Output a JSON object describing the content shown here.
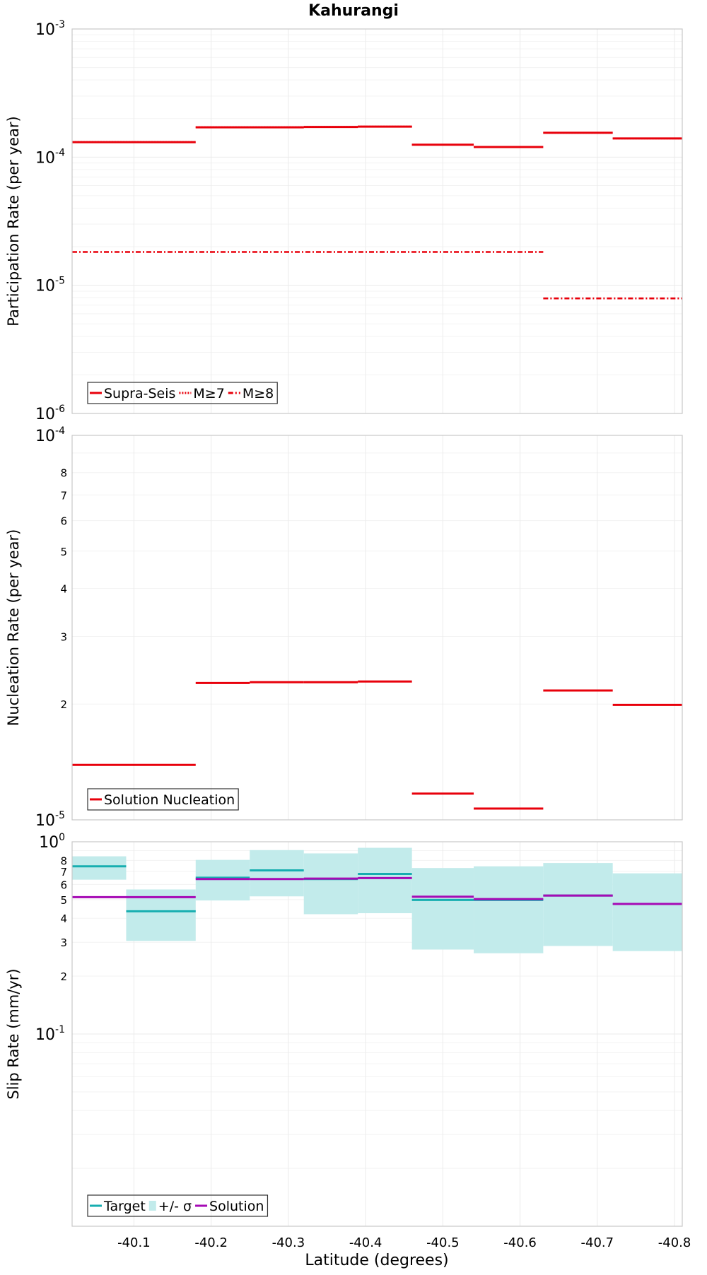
{
  "title": "Kahurangi",
  "xlabel": "Latitude (degrees)",
  "chart_data": [
    {
      "type": "line",
      "step": true,
      "ylabel": "Participation Rate (per year)",
      "yscale": "log",
      "ylim": [
        1e-06,
        0.001
      ],
      "xlim": [
        -40.02,
        -40.81
      ],
      "y_ticks": [
        {
          "base": "10",
          "exp": "-3",
          "value": 0.001
        },
        {
          "base": "10",
          "exp": "-4",
          "value": 0.0001
        },
        {
          "base": "10",
          "exp": "-5",
          "value": 1e-05
        },
        {
          "base": "10",
          "exp": "-6",
          "value": 1e-06
        }
      ],
      "grid": true,
      "legend_position": "bottom-left",
      "legend": [
        {
          "label": "Supra-Seis",
          "style": "solid",
          "color": "#e8000b"
        },
        {
          "label": "M≥7",
          "style": "dotted",
          "color": "#e8000b"
        },
        {
          "label": "M≥8",
          "style": "dashdot",
          "color": "#e8000b"
        }
      ],
      "series": [
        {
          "name": "Supra-Seis",
          "style": "solid",
          "color": "#e8000b",
          "segments": [
            {
              "x0": -40.02,
              "x1": -40.18,
              "y": 0.000131
            },
            {
              "x0": -40.18,
              "x1": -40.25,
              "y": 0.000171
            },
            {
              "x0": -40.25,
              "x1": -40.32,
              "y": 0.000171
            },
            {
              "x0": -40.32,
              "x1": -40.39,
              "y": 0.000172
            },
            {
              "x0": -40.39,
              "x1": -40.46,
              "y": 0.000173
            },
            {
              "x0": -40.46,
              "x1": -40.54,
              "y": 0.000125
            },
            {
              "x0": -40.54,
              "x1": -40.63,
              "y": 0.00012
            },
            {
              "x0": -40.63,
              "x1": -40.72,
              "y": 0.000155
            },
            {
              "x0": -40.72,
              "x1": -40.81,
              "y": 0.00014
            }
          ]
        },
        {
          "name": "M≥7",
          "style": "dotted",
          "color": "#e8000b",
          "segments": [
            {
              "x0": -40.02,
              "x1": -40.18,
              "y": 0.000131
            },
            {
              "x0": -40.18,
              "x1": -40.25,
              "y": 0.000171
            },
            {
              "x0": -40.25,
              "x1": -40.32,
              "y": 0.000171
            },
            {
              "x0": -40.32,
              "x1": -40.39,
              "y": 0.000172
            },
            {
              "x0": -40.39,
              "x1": -40.46,
              "y": 0.000173
            },
            {
              "x0": -40.46,
              "x1": -40.54,
              "y": 0.000125
            },
            {
              "x0": -40.54,
              "x1": -40.63,
              "y": 0.00012
            },
            {
              "x0": -40.63,
              "x1": -40.72,
              "y": 0.000155
            },
            {
              "x0": -40.72,
              "x1": -40.81,
              "y": 0.00014
            }
          ]
        },
        {
          "name": "M≥8",
          "style": "dashdot",
          "color": "#e8000b",
          "segments": [
            {
              "x0": -40.02,
              "x1": -40.63,
              "y": 1.82e-05
            },
            {
              "x0": -40.63,
              "x1": -40.81,
              "y": 7.9e-06
            }
          ]
        }
      ]
    },
    {
      "type": "line",
      "step": true,
      "ylabel": "Nucleation Rate (per year)",
      "yscale": "log",
      "ylim": [
        1e-05,
        0.0001
      ],
      "xlim": [
        -40.02,
        -40.81
      ],
      "y_ticks": [
        {
          "base": "10",
          "exp": "-4",
          "value": 0.0001
        },
        {
          "base": "",
          "exp": "",
          "label": "8",
          "value": 8e-05
        },
        {
          "base": "",
          "exp": "",
          "label": "7",
          "value": 7e-05
        },
        {
          "base": "",
          "exp": "",
          "label": "6",
          "value": 6e-05
        },
        {
          "base": "",
          "exp": "",
          "label": "5",
          "value": 5e-05
        },
        {
          "base": "",
          "exp": "",
          "label": "4",
          "value": 4e-05
        },
        {
          "base": "",
          "exp": "",
          "label": "3",
          "value": 3e-05
        },
        {
          "base": "",
          "exp": "",
          "label": "2",
          "value": 2e-05
        },
        {
          "base": "10",
          "exp": "-5",
          "value": 1e-05
        }
      ],
      "grid": true,
      "legend_position": "bottom-left",
      "legend": [
        {
          "label": "Solution Nucleation",
          "style": "solid",
          "color": "#e8000b"
        }
      ],
      "series": [
        {
          "name": "Solution Nucleation",
          "style": "solid",
          "color": "#e8000b",
          "segments": [
            {
              "x0": -40.02,
              "x1": -40.18,
              "y": 1.39e-05
            },
            {
              "x0": -40.18,
              "x1": -40.25,
              "y": 2.27e-05
            },
            {
              "x0": -40.25,
              "x1": -40.32,
              "y": 2.28e-05
            },
            {
              "x0": -40.32,
              "x1": -40.39,
              "y": 2.28e-05
            },
            {
              "x0": -40.39,
              "x1": -40.46,
              "y": 2.29e-05
            },
            {
              "x0": -40.46,
              "x1": -40.54,
              "y": 1.17e-05
            },
            {
              "x0": -40.54,
              "x1": -40.63,
              "y": 1.07e-05
            },
            {
              "x0": -40.63,
              "x1": -40.72,
              "y": 2.17e-05
            },
            {
              "x0": -40.72,
              "x1": -40.81,
              "y": 1.99e-05
            }
          ]
        }
      ]
    },
    {
      "type": "line",
      "step": true,
      "ylabel": "Slip Rate (mm/yr)",
      "yscale": "log",
      "ylim": [
        0.1,
        10
      ],
      "xlim": [
        -40.02,
        -40.81
      ],
      "y_ticks": [
        {
          "base": "10",
          "exp": "0",
          "value": 10
        },
        {
          "base": "",
          "exp": "",
          "label": "8",
          "value": 8
        },
        {
          "base": "",
          "exp": "",
          "label": "7",
          "value": 7
        },
        {
          "base": "",
          "exp": "",
          "label": "6",
          "value": 6
        },
        {
          "base": "",
          "exp": "",
          "label": "5",
          "value": 5
        },
        {
          "base": "",
          "exp": "",
          "label": "4",
          "value": 4
        },
        {
          "base": "",
          "exp": "",
          "label": "3",
          "value": 3
        },
        {
          "base": "",
          "exp": "",
          "label": "2",
          "value": 2
        },
        {
          "base": "10",
          "exp": "-1",
          "value": 1
        }
      ],
      "x_ticks": [
        "-40.1",
        "-40.2",
        "-40.3",
        "-40.4",
        "-40.5",
        "-40.6",
        "-40.7",
        "-40.8"
      ],
      "grid": true,
      "legend_position": "bottom-left",
      "legend": [
        {
          "label": "Target",
          "style": "solid",
          "color": "#17aeb0"
        },
        {
          "label": "+/- σ",
          "style": "fill",
          "color": "#c2ebeb"
        },
        {
          "label": "Solution",
          "style": "solid",
          "color": "#a60ab5"
        }
      ],
      "bands": [
        {
          "x0": -40.02,
          "x1": -40.09,
          "low": 6.35,
          "high": 8.4
        },
        {
          "x0": -40.09,
          "x1": -40.18,
          "low": 3.05,
          "high": 5.65
        },
        {
          "x0": -40.18,
          "x1": -40.25,
          "low": 4.95,
          "high": 8.05
        },
        {
          "x0": -40.25,
          "x1": -40.32,
          "low": 5.2,
          "high": 9.05
        },
        {
          "x0": -40.32,
          "x1": -40.39,
          "low": 4.2,
          "high": 8.7
        },
        {
          "x0": -40.39,
          "x1": -40.46,
          "low": 4.25,
          "high": 9.3
        },
        {
          "x0": -40.46,
          "x1": -40.54,
          "low": 2.75,
          "high": 7.3
        },
        {
          "x0": -40.54,
          "x1": -40.63,
          "low": 2.63,
          "high": 7.45
        },
        {
          "x0": -40.63,
          "x1": -40.72,
          "low": 2.87,
          "high": 7.75
        },
        {
          "x0": -40.72,
          "x1": -40.81,
          "low": 2.7,
          "high": 6.85
        }
      ],
      "series": [
        {
          "name": "Target",
          "color": "#17aeb0",
          "segments": [
            {
              "x0": -40.02,
              "x1": -40.09,
              "y": 7.45
            },
            {
              "x0": -40.09,
              "x1": -40.18,
              "y": 4.35
            },
            {
              "x0": -40.18,
              "x1": -40.25,
              "y": 6.5
            },
            {
              "x0": -40.25,
              "x1": -40.32,
              "y": 7.1
            },
            {
              "x0": -40.32,
              "x1": -40.39,
              "y": 6.4
            },
            {
              "x0": -40.39,
              "x1": -40.46,
              "y": 6.8
            },
            {
              "x0": -40.46,
              "x1": -40.54,
              "y": 4.98
            },
            {
              "x0": -40.54,
              "x1": -40.63,
              "y": 4.98
            },
            {
              "x0": -40.63,
              "x1": -40.72,
              "y": 5.25
            },
            {
              "x0": -40.72,
              "x1": -40.81,
              "y": 4.75
            }
          ]
        },
        {
          "name": "Solution",
          "color": "#a60ab5",
          "segments": [
            {
              "x0": -40.02,
              "x1": -40.18,
              "y": 5.15
            },
            {
              "x0": -40.18,
              "x1": -40.25,
              "y": 6.4
            },
            {
              "x0": -40.25,
              "x1": -40.32,
              "y": 6.4
            },
            {
              "x0": -40.32,
              "x1": -40.39,
              "y": 6.43
            },
            {
              "x0": -40.39,
              "x1": -40.46,
              "y": 6.47
            },
            {
              "x0": -40.46,
              "x1": -40.54,
              "y": 5.18
            },
            {
              "x0": -40.54,
              "x1": -40.63,
              "y": 5.03
            },
            {
              "x0": -40.63,
              "x1": -40.72,
              "y": 5.25
            },
            {
              "x0": -40.72,
              "x1": -40.81,
              "y": 4.75
            }
          ]
        }
      ]
    }
  ]
}
